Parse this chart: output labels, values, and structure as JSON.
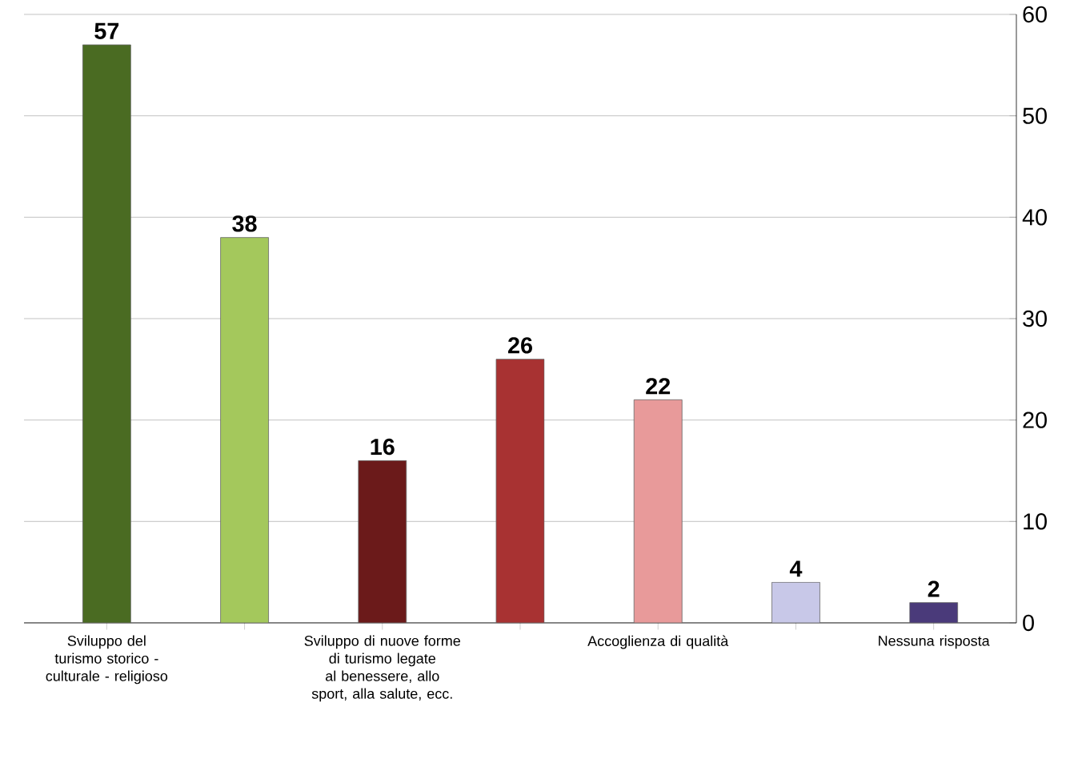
{
  "chart_data": {
    "type": "bar",
    "categories": [
      "Sviluppo del turismo storico - culturale - religioso",
      null,
      "Sviluppo di nuove forme di turismo legate al benessere, allo sport, alla salute, ecc.",
      null,
      "Accoglienza di qualità",
      null,
      "Nessuna risposta"
    ],
    "values": [
      57,
      38,
      16,
      26,
      22,
      4,
      2
    ],
    "colors": [
      "#4a6b22",
      "#a4c85c",
      "#6b1a1a",
      "#a83232",
      "#e89a9a",
      "#c8c8e8",
      "#4a3a7a"
    ],
    "ylim": [
      0,
      60
    ],
    "yticks": [
      0,
      10,
      20,
      30,
      40,
      50,
      60
    ],
    "grid": "y",
    "data_labels": true
  }
}
